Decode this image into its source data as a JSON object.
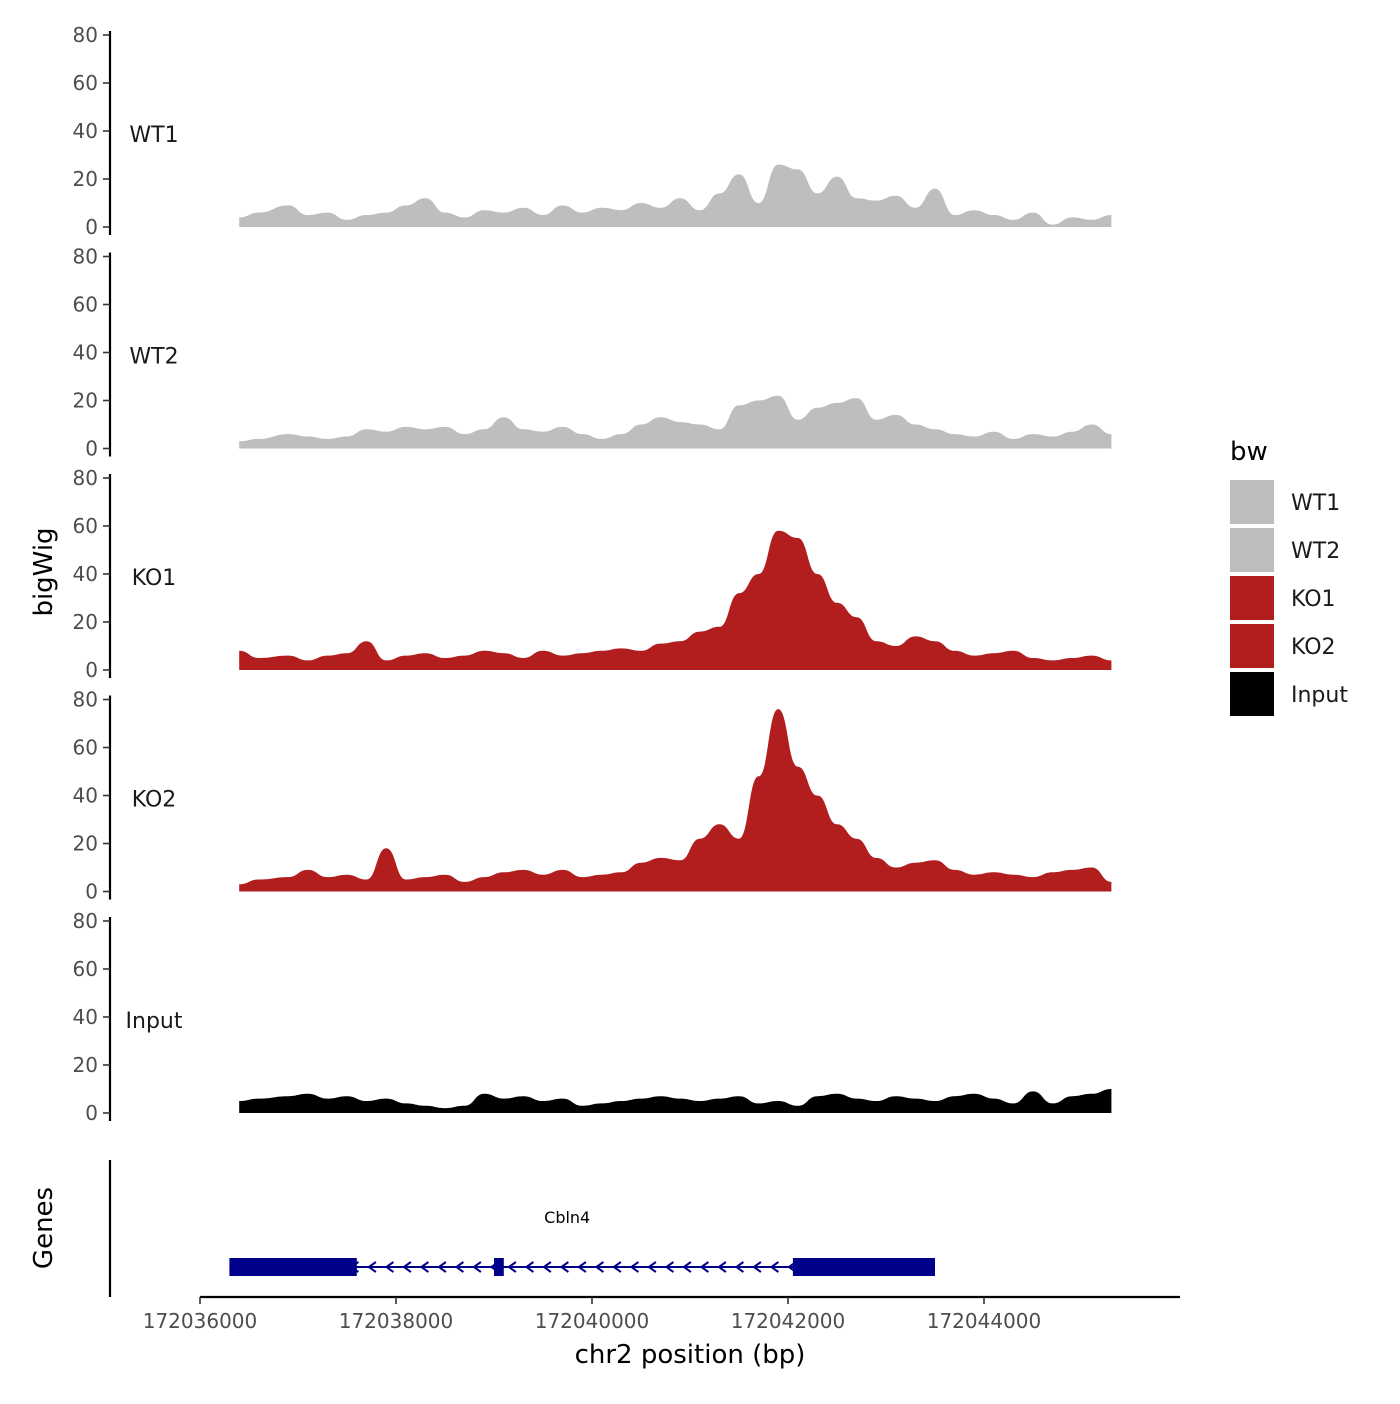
{
  "chart_data": {
    "type": "area",
    "title": "",
    "ylabel": "bigWig",
    "xlabel": "chr2 position (bp)",
    "gene_panel_label": "Genes",
    "xlim": [
      172036000,
      172046000
    ],
    "ylim": [
      0,
      80
    ],
    "y_ticks": [
      0,
      20,
      40,
      60,
      80
    ],
    "x_ticks": [
      172036000,
      172038000,
      172040000,
      172042000,
      172044000
    ],
    "legend": {
      "title": "bw",
      "placement": "right",
      "entries": [
        {
          "label": "WT1",
          "color": "#BEBEBE"
        },
        {
          "label": "WT2",
          "color": "#BEBEBE"
        },
        {
          "label": "KO1",
          "color": "#B21E1E"
        },
        {
          "label": "KO2",
          "color": "#B21E1E"
        },
        {
          "label": "Input",
          "color": "#000000"
        }
      ]
    },
    "series": [
      {
        "name": "WT1",
        "color": "#BEBEBE",
        "x": [
          172036400,
          172036600,
          172036900,
          172037100,
          172037300,
          172037500,
          172037700,
          172037900,
          172038100,
          172038300,
          172038500,
          172038700,
          172038900,
          172039100,
          172039300,
          172039500,
          172039700,
          172039900,
          172040100,
          172040300,
          172040500,
          172040700,
          172040900,
          172041100,
          172041300,
          172041500,
          172041700,
          172041900,
          172042100,
          172042300,
          172042500,
          172042700,
          172042900,
          172043100,
          172043300,
          172043500,
          172043700,
          172043900,
          172044100,
          172044300,
          172044500,
          172044700,
          172044900,
          172045100,
          172045300
        ],
        "values": [
          4,
          6,
          9,
          5,
          6,
          3,
          5,
          6,
          9,
          12,
          6,
          4,
          7,
          6,
          8,
          5,
          9,
          6,
          8,
          7,
          10,
          8,
          12,
          7,
          14,
          22,
          10,
          26,
          24,
          14,
          21,
          12,
          11,
          13,
          8,
          16,
          5,
          7,
          5,
          3,
          6,
          1,
          4,
          3,
          5
        ]
      },
      {
        "name": "WT2",
        "color": "#BEBEBE",
        "x": [
          172036400,
          172036600,
          172036900,
          172037100,
          172037300,
          172037500,
          172037700,
          172037900,
          172038100,
          172038300,
          172038500,
          172038700,
          172038900,
          172039100,
          172039300,
          172039500,
          172039700,
          172039900,
          172040100,
          172040300,
          172040500,
          172040700,
          172040900,
          172041100,
          172041300,
          172041500,
          172041700,
          172041900,
          172042100,
          172042300,
          172042500,
          172042700,
          172042900,
          172043100,
          172043300,
          172043500,
          172043700,
          172043900,
          172044100,
          172044300,
          172044500,
          172044700,
          172044900,
          172045100,
          172045300
        ],
        "values": [
          3,
          4,
          6,
          5,
          4,
          5,
          8,
          7,
          9,
          8,
          9,
          6,
          8,
          13,
          8,
          7,
          9,
          6,
          4,
          6,
          10,
          13,
          11,
          10,
          8,
          18,
          20,
          22,
          12,
          17,
          19,
          21,
          12,
          14,
          10,
          8,
          6,
          5,
          7,
          4,
          6,
          5,
          7,
          10,
          6
        ]
      },
      {
        "name": "KO1",
        "color": "#B21E1E",
        "x": [
          172036400,
          172036600,
          172036900,
          172037100,
          172037300,
          172037500,
          172037700,
          172037900,
          172038100,
          172038300,
          172038500,
          172038700,
          172038900,
          172039100,
          172039300,
          172039500,
          172039700,
          172039900,
          172040100,
          172040300,
          172040500,
          172040700,
          172040900,
          172041100,
          172041300,
          172041500,
          172041700,
          172041900,
          172042100,
          172042300,
          172042500,
          172042700,
          172042900,
          172043100,
          172043300,
          172043500,
          172043700,
          172043900,
          172044100,
          172044300,
          172044500,
          172044700,
          172044900,
          172045100,
          172045300
        ],
        "values": [
          8,
          5,
          6,
          4,
          6,
          7,
          12,
          4,
          6,
          7,
          5,
          6,
          8,
          7,
          5,
          8,
          6,
          7,
          8,
          9,
          8,
          11,
          12,
          16,
          18,
          32,
          40,
          58,
          55,
          40,
          28,
          22,
          12,
          10,
          14,
          12,
          8,
          6,
          7,
          8,
          5,
          4,
          5,
          6,
          4
        ]
      },
      {
        "name": "KO2",
        "color": "#B21E1E",
        "x": [
          172036400,
          172036600,
          172036900,
          172037100,
          172037300,
          172037500,
          172037700,
          172037900,
          172038100,
          172038300,
          172038500,
          172038700,
          172038900,
          172039100,
          172039300,
          172039500,
          172039700,
          172039900,
          172040100,
          172040300,
          172040500,
          172040700,
          172040900,
          172041100,
          172041300,
          172041500,
          172041700,
          172041900,
          172042100,
          172042300,
          172042500,
          172042700,
          172042900,
          172043100,
          172043300,
          172043500,
          172043700,
          172043900,
          172044100,
          172044300,
          172044500,
          172044700,
          172044900,
          172045100,
          172045300
        ],
        "values": [
          3,
          5,
          6,
          9,
          6,
          7,
          5,
          18,
          5,
          6,
          7,
          4,
          6,
          8,
          9,
          7,
          9,
          6,
          7,
          8,
          12,
          14,
          13,
          22,
          28,
          22,
          48,
          76,
          52,
          40,
          28,
          22,
          14,
          10,
          12,
          13,
          9,
          7,
          8,
          7,
          6,
          8,
          9,
          10,
          4
        ]
      },
      {
        "name": "Input",
        "color": "#000000",
        "x": [
          172036400,
          172036600,
          172036900,
          172037100,
          172037300,
          172037500,
          172037700,
          172037900,
          172038100,
          172038300,
          172038500,
          172038700,
          172038900,
          172039100,
          172039300,
          172039500,
          172039700,
          172039900,
          172040100,
          172040300,
          172040500,
          172040700,
          172040900,
          172041100,
          172041300,
          172041500,
          172041700,
          172041900,
          172042100,
          172042300,
          172042500,
          172042700,
          172042900,
          172043100,
          172043300,
          172043500,
          172043700,
          172043900,
          172044100,
          172044300,
          172044500,
          172044700,
          172044900,
          172045100,
          172045300
        ],
        "values": [
          5,
          6,
          7,
          8,
          6,
          7,
          5,
          6,
          4,
          3,
          2,
          3,
          8,
          6,
          7,
          5,
          6,
          3,
          4,
          5,
          6,
          7,
          6,
          5,
          6,
          7,
          4,
          5,
          3,
          7,
          8,
          6,
          5,
          7,
          6,
          5,
          7,
          8,
          6,
          4,
          9,
          4,
          7,
          8,
          10
        ]
      }
    ],
    "genes": [
      {
        "name": "Cbln4",
        "strand": "-",
        "start": 172036300,
        "end": 172043500,
        "exons": [
          {
            "start": 172036300,
            "end": 172037600
          },
          {
            "start": 172039000,
            "end": 172039100
          },
          {
            "start": 172042050,
            "end": 172043500
          }
        ]
      }
    ]
  }
}
